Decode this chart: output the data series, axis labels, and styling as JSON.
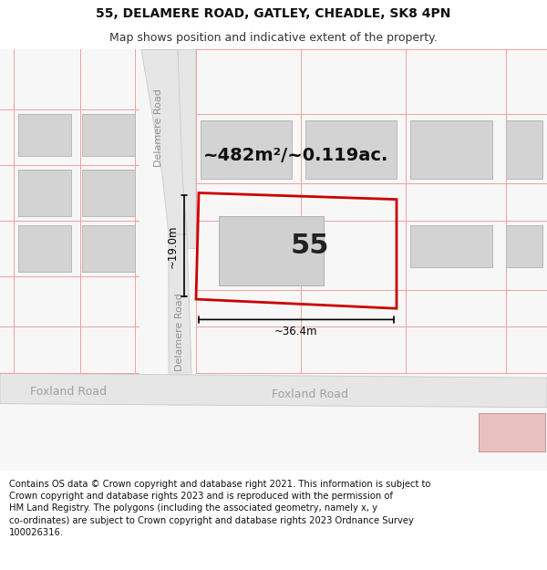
{
  "title": "55, DELAMERE ROAD, GATLEY, CHEADLE, SK8 4PN",
  "subtitle": "Map shows position and indicative extent of the property.",
  "footer": "Contains OS data © Crown copyright and database right 2021. This information is subject to\nCrown copyright and database rights 2023 and is reproduced with the permission of\nHM Land Registry. The polygons (including the associated geometry, namely x, y\nco-ordinates) are subject to Crown copyright and database rights 2023 Ordnance Survey\n100026316.",
  "area_label": "~482m²/~0.119ac.",
  "width_label": "~36.4m",
  "height_label": "~19.0m",
  "number_label": "55",
  "bg_color": "#ffffff",
  "map_bg": "#f7f7f7",
  "road_fill": "#e6e6e6",
  "road_stroke": "#c8c8c8",
  "plot_stroke": "#cc0000",
  "building_fill": "#d3d3d3",
  "building_stroke": "#b8b8b8",
  "pink_line": "#f0a0a0",
  "delamere_road_label": "Delamere Road",
  "foxland_road_label": "Foxland Road",
  "title_fontsize": 10,
  "subtitle_fontsize": 9,
  "footer_fontsize": 7.2,
  "area_fontsize": 14,
  "number_fontsize": 22,
  "dim_fontsize": 8.5,
  "road_label_fontsize": 8
}
